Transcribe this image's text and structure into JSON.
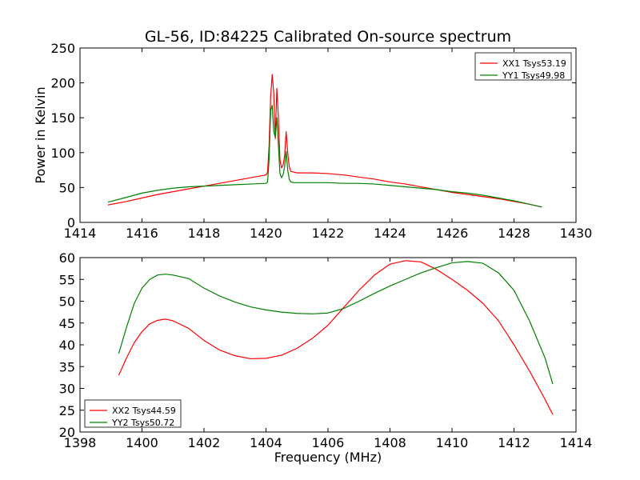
{
  "figure": {
    "title": "GL-56, ID:84225 Calibrated On-source spectrum"
  },
  "chart_data": [
    {
      "type": "line",
      "title": "GL-56, ID:84225 Calibrated On-source spectrum",
      "xlabel": "",
      "ylabel": "Power in Kelvin",
      "xlim": [
        1414,
        1430
      ],
      "ylim": [
        0,
        250
      ],
      "xticks": [
        "1414",
        "1416",
        "1418",
        "1420",
        "1422",
        "1424",
        "1426",
        "1428",
        "1430"
      ],
      "yticks": [
        "0",
        "50",
        "100",
        "150",
        "200",
        "250"
      ],
      "grid": false,
      "legend_position": "top-right",
      "series": [
        {
          "name": "XX1 Tsys53.19",
          "color": "#ff0000",
          "x": [
            1414.9,
            1415.5,
            1416,
            1416.5,
            1417,
            1417.5,
            1418,
            1418.5,
            1419,
            1419.5,
            1420,
            1420.05,
            1420.1,
            1420.15,
            1420.2,
            1420.25,
            1420.3,
            1420.35,
            1420.4,
            1420.45,
            1420.5,
            1420.55,
            1420.6,
            1420.65,
            1420.7,
            1420.75,
            1420.8,
            1420.9,
            1421,
            1421.5,
            1422,
            1422.5,
            1423,
            1423.5,
            1424,
            1424.5,
            1425,
            1425.5,
            1426,
            1426.5,
            1427,
            1427.5,
            1428,
            1428.5,
            1428.9
          ],
          "values": [
            25,
            30,
            35,
            40,
            44,
            48,
            52,
            56,
            60,
            64,
            68,
            72,
            110,
            180,
            212,
            185,
            120,
            192,
            150,
            90,
            78,
            82,
            95,
            130,
            100,
            80,
            73,
            72,
            71,
            71,
            70,
            68,
            65,
            62,
            58,
            55,
            51,
            47,
            43,
            40,
            37,
            34,
            30,
            26,
            22
          ]
        },
        {
          "name": "YY1 Tsys49.98",
          "color": "#008000",
          "x": [
            1414.9,
            1415.5,
            1416,
            1416.5,
            1417,
            1417.5,
            1418,
            1418.5,
            1419,
            1419.5,
            1420,
            1420.05,
            1420.1,
            1420.15,
            1420.2,
            1420.25,
            1420.3,
            1420.35,
            1420.4,
            1420.45,
            1420.5,
            1420.55,
            1420.6,
            1420.65,
            1420.7,
            1420.75,
            1420.8,
            1420.9,
            1421,
            1421.5,
            1422,
            1422.5,
            1423,
            1423.5,
            1424,
            1424.5,
            1425,
            1425.5,
            1426,
            1426.5,
            1427,
            1427.5,
            1428,
            1428.5,
            1428.9
          ],
          "values": [
            29,
            36,
            42,
            46,
            49,
            51,
            52,
            53,
            54,
            55,
            56,
            58,
            90,
            160,
            168,
            130,
            122,
            150,
            110,
            70,
            64,
            68,
            80,
            102,
            75,
            62,
            58,
            57,
            57,
            57,
            57,
            56,
            56,
            55,
            53,
            51,
            49,
            47,
            44,
            42,
            39,
            35,
            31,
            26,
            22
          ]
        }
      ]
    },
    {
      "type": "line",
      "title": "",
      "xlabel": "Frequency (MHz)",
      "ylabel": "",
      "xlim": [
        1398,
        1414
      ],
      "ylim": [
        20,
        60
      ],
      "xticks": [
        "1398",
        "1400",
        "1402",
        "1404",
        "1406",
        "1408",
        "1410",
        "1412",
        "1414"
      ],
      "yticks": [
        "20",
        "25",
        "30",
        "35",
        "40",
        "45",
        "50",
        "55",
        "60"
      ],
      "grid": false,
      "legend_position": "bottom-left",
      "series": [
        {
          "name": "XX2 Tsys44.59",
          "color": "#ff0000",
          "x": [
            1399.25,
            1399.5,
            1399.75,
            1400,
            1400.25,
            1400.5,
            1400.75,
            1401,
            1401.5,
            1402,
            1402.5,
            1403,
            1403.5,
            1404,
            1404.5,
            1405,
            1405.5,
            1406,
            1406.5,
            1407,
            1407.5,
            1408,
            1408.5,
            1409,
            1409.5,
            1410,
            1410.5,
            1411,
            1411.5,
            1412,
            1412.5,
            1413,
            1413.25
          ],
          "values": [
            33,
            37,
            40.5,
            43,
            44.8,
            45.6,
            45.9,
            45.5,
            43.8,
            41,
            38.8,
            37.5,
            36.8,
            36.9,
            37.6,
            39.2,
            41.5,
            44.5,
            48.5,
            52.5,
            56,
            58.5,
            59.3,
            59,
            57.3,
            55,
            52.5,
            49.5,
            45.5,
            40,
            34,
            27.5,
            24
          ]
        },
        {
          "name": "YY2 Tsys50.72",
          "color": "#008000",
          "x": [
            1399.25,
            1399.5,
            1399.75,
            1400,
            1400.25,
            1400.5,
            1400.75,
            1401,
            1401.5,
            1402,
            1402.5,
            1403,
            1403.5,
            1404,
            1404.5,
            1405,
            1405.5,
            1406,
            1406.5,
            1407,
            1407.5,
            1408,
            1408.5,
            1409,
            1409.5,
            1410,
            1410.5,
            1411,
            1411.5,
            1412,
            1412.5,
            1413,
            1413.25
          ],
          "values": [
            38,
            44,
            49.5,
            53,
            55,
            56,
            56.2,
            56,
            55.2,
            53,
            51.2,
            49.8,
            48.7,
            48,
            47.5,
            47.2,
            47.1,
            47.3,
            48.3,
            50,
            51.8,
            53.5,
            55,
            56.5,
            57.7,
            58.8,
            59.1,
            58.7,
            56.5,
            52.5,
            45.5,
            37,
            31
          ]
        }
      ]
    }
  ]
}
